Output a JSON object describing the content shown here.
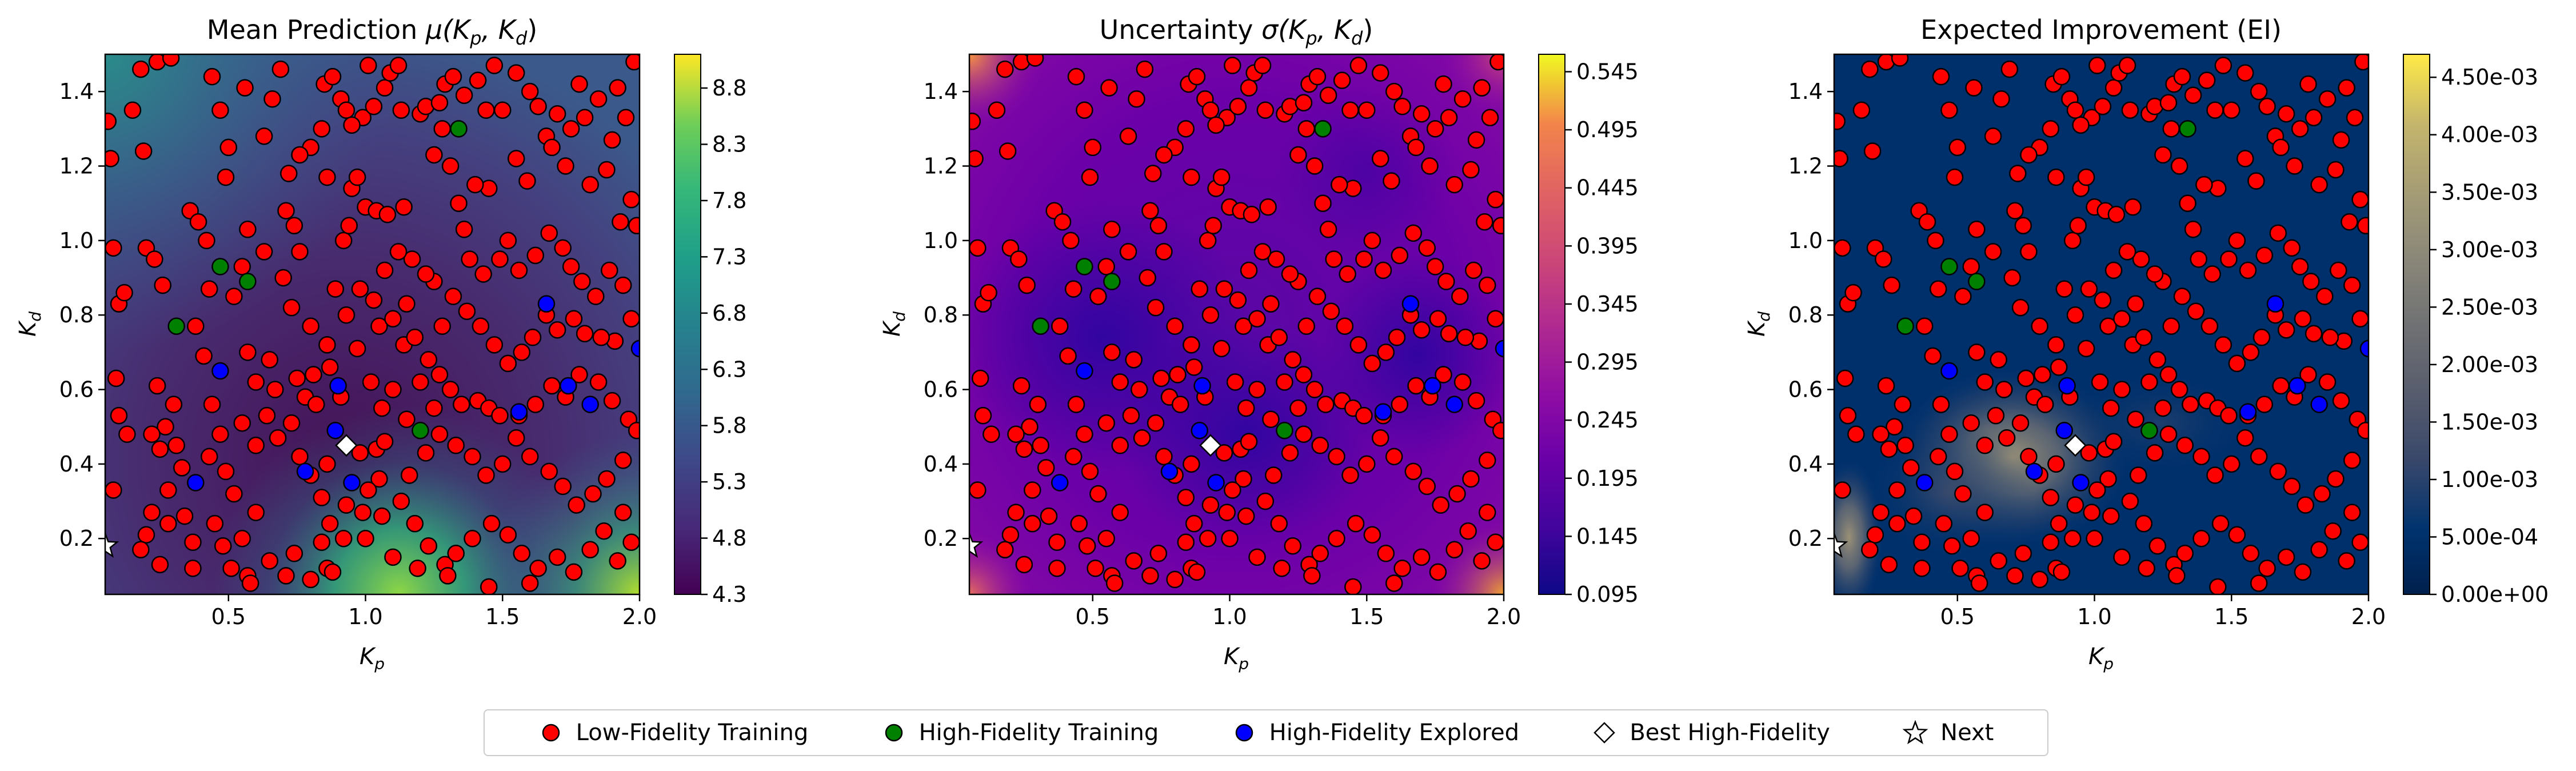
{
  "figure": {
    "legend": [
      {
        "label": "Low-Fidelity Training",
        "color": "#ff0000",
        "marker": "circle"
      },
      {
        "label": "High-Fidelity Training",
        "color": "#008000",
        "marker": "circle"
      },
      {
        "label": "High-Fidelity Explored",
        "color": "#0000ff",
        "marker": "circle"
      },
      {
        "label": "Best High-Fidelity",
        "color": "#ffffff",
        "marker": "diamond"
      },
      {
        "label": "Next",
        "color": "#ffffff",
        "marker": "star"
      }
    ]
  },
  "chart_data": [
    {
      "type": "heatmap",
      "title_main": "Mean Prediction ",
      "title_math": "μ(K",
      "title_sub1": "p",
      "title_mid": ", K",
      "title_sub2": "d",
      "title_end": ")",
      "xlabel_main": "K",
      "xlabel_sub": "p",
      "ylabel_main": "K",
      "ylabel_sub": "d",
      "xlim": [
        0.05,
        2.0
      ],
      "ylim": [
        0.05,
        1.5
      ],
      "xticks": [
        "0.5",
        "1.0",
        "1.5",
        "2.0"
      ],
      "xtick_values": [
        0.5,
        1.0,
        1.5,
        2.0
      ],
      "yticks": [
        "0.2",
        "0.4",
        "0.6",
        "0.8",
        "1.0",
        "1.2",
        "1.4"
      ],
      "ytick_values": [
        0.2,
        0.4,
        0.6,
        0.8,
        1.0,
        1.2,
        1.4
      ],
      "colormap": "viridis",
      "colorbar_range": [
        4.3,
        9.1
      ],
      "colorbar_ticks": [
        "4.3",
        "4.8",
        "5.3",
        "5.8",
        "6.3",
        "6.8",
        "7.3",
        "7.8",
        "8.3",
        "8.8"
      ],
      "colorbar_tick_values": [
        4.3,
        4.8,
        5.3,
        5.8,
        6.3,
        6.8,
        7.3,
        7.8,
        8.3,
        8.8
      ]
    },
    {
      "type": "heatmap",
      "title_main": "Uncertainty ",
      "title_math": "σ(K",
      "title_sub1": "p",
      "title_mid": ", K",
      "title_sub2": "d",
      "title_end": ")",
      "xlabel_main": "K",
      "xlabel_sub": "p",
      "ylabel_main": "K",
      "ylabel_sub": "d",
      "xlim": [
        0.05,
        2.0
      ],
      "ylim": [
        0.05,
        1.5
      ],
      "xticks": [
        "0.5",
        "1.0",
        "1.5",
        "2.0"
      ],
      "xtick_values": [
        0.5,
        1.0,
        1.5,
        2.0
      ],
      "yticks": [
        "0.2",
        "0.4",
        "0.6",
        "0.8",
        "1.0",
        "1.2",
        "1.4"
      ],
      "ytick_values": [
        0.2,
        0.4,
        0.6,
        0.8,
        1.0,
        1.2,
        1.4
      ],
      "colormap": "plasma",
      "colorbar_range": [
        0.095,
        0.56
      ],
      "colorbar_ticks": [
        "0.095",
        "0.145",
        "0.195",
        "0.245",
        "0.295",
        "0.345",
        "0.395",
        "0.445",
        "0.495",
        "0.545"
      ],
      "colorbar_tick_values": [
        0.095,
        0.145,
        0.195,
        0.245,
        0.295,
        0.345,
        0.395,
        0.445,
        0.495,
        0.545
      ]
    },
    {
      "type": "heatmap",
      "title_main": "Expected Improvement (EI)",
      "title_math": "",
      "title_sub1": "",
      "title_mid": "",
      "title_sub2": "",
      "title_end": "",
      "xlabel_main": "K",
      "xlabel_sub": "p",
      "ylabel_main": "K",
      "ylabel_sub": "d",
      "xlim": [
        0.05,
        2.0
      ],
      "ylim": [
        0.05,
        1.5
      ],
      "xticks": [
        "0.5",
        "1.0",
        "1.5",
        "2.0"
      ],
      "xtick_values": [
        0.5,
        1.0,
        1.5,
        2.0
      ],
      "yticks": [
        "0.2",
        "0.4",
        "0.6",
        "0.8",
        "1.0",
        "1.2",
        "1.4"
      ],
      "ytick_values": [
        0.2,
        0.4,
        0.6,
        0.8,
        1.0,
        1.2,
        1.4
      ],
      "colormap": "cividis",
      "colorbar_range": [
        0.0,
        0.0047
      ],
      "colorbar_ticks": [
        "0.00e+00",
        "5.00e-04",
        "1.00e-03",
        "1.50e-03",
        "2.00e-03",
        "2.50e-03",
        "3.00e-03",
        "3.50e-03",
        "4.00e-03",
        "4.50e-03"
      ],
      "colorbar_tick_values": [
        0.0,
        0.0005,
        0.001,
        0.0015,
        0.002,
        0.0025,
        0.003,
        0.0035,
        0.004,
        0.0045
      ]
    }
  ],
  "points": {
    "low_fidelity": [
      [
        0.06,
        1.32
      ],
      [
        0.07,
        1.22
      ],
      [
        0.08,
        0.98
      ],
      [
        0.1,
        0.83
      ],
      [
        0.12,
        0.86
      ],
      [
        0.09,
        0.63
      ],
      [
        0.1,
        0.53
      ],
      [
        0.13,
        0.48
      ],
      [
        0.08,
        0.33
      ],
      [
        0.18,
        1.46
      ],
      [
        0.24,
        1.48
      ],
      [
        0.29,
        1.49
      ],
      [
        0.15,
        1.35
      ],
      [
        0.19,
        1.24
      ],
      [
        0.2,
        0.98
      ],
      [
        0.23,
        0.95
      ],
      [
        0.26,
        0.88
      ],
      [
        0.24,
        0.61
      ],
      [
        0.3,
        0.56
      ],
      [
        0.27,
        0.5
      ],
      [
        0.22,
        0.48
      ],
      [
        0.25,
        0.44
      ],
      [
        0.31,
        0.45
      ],
      [
        0.33,
        0.39
      ],
      [
        0.28,
        0.33
      ],
      [
        0.22,
        0.27
      ],
      [
        0.28,
        0.24
      ],
      [
        0.37,
        0.19
      ],
      [
        0.2,
        0.21
      ],
      [
        0.18,
        0.17
      ],
      [
        0.25,
        0.13
      ],
      [
        0.37,
        0.12
      ],
      [
        0.34,
        0.26
      ],
      [
        0.36,
        1.08
      ],
      [
        0.39,
        1.05
      ],
      [
        0.42,
        1.0
      ],
      [
        0.43,
        0.87
      ],
      [
        0.38,
        0.77
      ],
      [
        0.41,
        0.69
      ],
      [
        0.44,
        0.56
      ],
      [
        0.47,
        0.48
      ],
      [
        0.49,
        0.38
      ],
      [
        0.43,
        0.42
      ],
      [
        0.45,
        0.24
      ],
      [
        0.48,
        0.18
      ],
      [
        0.55,
        0.2
      ],
      [
        0.51,
        0.12
      ],
      [
        0.57,
        0.1
      ],
      [
        0.58,
        0.08
      ],
      [
        0.52,
        0.32
      ],
      [
        0.6,
        0.27
      ],
      [
        0.65,
        0.14
      ],
      [
        0.71,
        0.1
      ],
      [
        0.74,
        0.16
      ],
      [
        0.8,
        0.09
      ],
      [
        0.86,
        0.12
      ],
      [
        0.88,
        0.11
      ],
      [
        0.6,
        0.45
      ],
      [
        0.55,
        0.51
      ],
      [
        0.64,
        0.53
      ],
      [
        0.68,
        0.47
      ],
      [
        0.67,
        0.6
      ],
      [
        0.6,
        0.62
      ],
      [
        0.65,
        0.68
      ],
      [
        0.57,
        0.7
      ],
      [
        0.75,
        0.63
      ],
      [
        0.78,
        0.58
      ],
      [
        0.82,
        0.56
      ],
      [
        0.73,
        0.51
      ],
      [
        0.76,
        0.42
      ],
      [
        0.8,
        0.37
      ],
      [
        0.86,
        0.4
      ],
      [
        0.84,
        0.31
      ],
      [
        0.93,
        0.29
      ],
      [
        0.87,
        0.24
      ],
      [
        0.92,
        0.2
      ],
      [
        0.84,
        0.19
      ],
      [
        0.81,
        0.64
      ],
      [
        0.87,
        0.66
      ],
      [
        0.91,
        0.58
      ],
      [
        0.98,
        0.43
      ],
      [
        1.04,
        0.44
      ],
      [
        1.05,
        0.36
      ],
      [
        1.01,
        0.33
      ],
      [
        1.06,
        0.26
      ],
      [
        0.52,
        0.85
      ],
      [
        0.55,
        0.93
      ],
      [
        0.63,
        0.97
      ],
      [
        0.57,
        1.03
      ],
      [
        0.49,
        1.17
      ],
      [
        0.47,
        1.35
      ],
      [
        0.44,
        1.44
      ],
      [
        0.5,
        1.25
      ],
      [
        0.56,
        1.41
      ],
      [
        0.63,
        1.28
      ],
      [
        0.66,
        1.38
      ],
      [
        0.69,
        1.46
      ],
      [
        0.72,
        1.18
      ],
      [
        0.71,
        1.08
      ],
      [
        0.74,
        1.04
      ],
      [
        0.76,
        0.97
      ],
      [
        0.7,
        0.9
      ],
      [
        0.73,
        0.82
      ],
      [
        0.8,
        0.77
      ],
      [
        0.86,
        0.72
      ],
      [
        0.89,
        0.87
      ],
      [
        0.92,
        1.0
      ],
      [
        0.94,
        1.04
      ],
      [
        0.95,
        1.14
      ],
      [
        0.97,
        1.17
      ],
      [
        0.99,
        1.33
      ],
      [
        1.01,
        1.47
      ],
      [
        0.85,
        1.42
      ],
      [
        0.88,
        1.44
      ],
      [
        0.91,
        1.38
      ],
      [
        0.93,
        1.35
      ],
      [
        0.95,
        1.31
      ],
      [
        1.03,
        1.36
      ],
      [
        1.07,
        1.41
      ],
      [
        1.09,
        1.45
      ],
      [
        1.12,
        1.47
      ],
      [
        0.8,
        1.25
      ],
      [
        0.76,
        1.23
      ],
      [
        0.84,
        1.3
      ],
      [
        0.86,
        1.17
      ],
      [
        1.0,
        1.09
      ],
      [
        1.04,
        1.08
      ],
      [
        1.08,
        1.07
      ],
      [
        1.14,
        1.09
      ],
      [
        1.13,
        1.35
      ],
      [
        1.2,
        1.34
      ],
      [
        1.22,
        1.36
      ],
      [
        1.25,
        1.23
      ],
      [
        1.28,
        1.3
      ],
      [
        1.27,
        1.37
      ],
      [
        1.29,
        1.42
      ],
      [
        1.32,
        1.44
      ],
      [
        1.36,
        1.39
      ],
      [
        1.41,
        1.43
      ],
      [
        1.44,
        1.35
      ],
      [
        1.47,
        1.47
      ],
      [
        1.5,
        1.35
      ],
      [
        1.55,
        1.45
      ],
      [
        1.6,
        1.4
      ],
      [
        1.63,
        1.36
      ],
      [
        1.66,
        1.28
      ],
      [
        1.7,
        1.34
      ],
      [
        1.75,
        1.3
      ],
      [
        1.78,
        1.42
      ],
      [
        1.8,
        1.33
      ],
      [
        1.85,
        1.38
      ],
      [
        1.9,
        1.27
      ],
      [
        1.95,
        1.33
      ],
      [
        1.98,
        1.48
      ],
      [
        1.92,
        1.41
      ],
      [
        1.68,
        1.25
      ],
      [
        1.73,
        1.2
      ],
      [
        1.82,
        1.15
      ],
      [
        1.88,
        1.19
      ],
      [
        1.93,
        1.05
      ],
      [
        1.97,
        1.11
      ],
      [
        1.59,
        1.16
      ],
      [
        1.55,
        1.22
      ],
      [
        1.45,
        1.14
      ],
      [
        1.4,
        1.15
      ],
      [
        1.34,
        1.1
      ],
      [
        1.31,
        1.2
      ],
      [
        1.36,
        1.03
      ],
      [
        1.38,
        0.95
      ],
      [
        1.43,
        0.91
      ],
      [
        1.49,
        0.95
      ],
      [
        1.52,
        1.0
      ],
      [
        1.56,
        0.92
      ],
      [
        1.62,
        0.96
      ],
      [
        1.67,
        1.02
      ],
      [
        1.72,
        0.98
      ],
      [
        1.75,
        0.93
      ],
      [
        1.79,
        0.89
      ],
      [
        1.84,
        0.85
      ],
      [
        1.89,
        0.92
      ],
      [
        1.94,
        0.88
      ],
      [
        1.99,
        1.04
      ],
      [
        1.97,
        0.79
      ],
      [
        1.91,
        0.73
      ],
      [
        1.86,
        0.74
      ],
      [
        1.8,
        0.75
      ],
      [
        1.76,
        0.79
      ],
      [
        1.7,
        0.76
      ],
      [
        1.66,
        0.8
      ],
      [
        1.61,
        0.74
      ],
      [
        1.57,
        0.7
      ],
      [
        1.52,
        0.67
      ],
      [
        1.47,
        0.72
      ],
      [
        1.42,
        0.77
      ],
      [
        1.37,
        0.81
      ],
      [
        1.32,
        0.85
      ],
      [
        1.28,
        0.77
      ],
      [
        1.25,
        0.89
      ],
      [
        1.22,
        0.91
      ],
      [
        1.17,
        0.95
      ],
      [
        1.12,
        0.97
      ],
      [
        1.07,
        0.92
      ],
      [
        1.03,
        0.84
      ],
      [
        1.05,
        0.77
      ],
      [
        1.1,
        0.79
      ],
      [
        1.14,
        0.72
      ],
      [
        1.18,
        0.74
      ],
      [
        1.23,
        0.68
      ],
      [
        1.27,
        0.64
      ],
      [
        1.31,
        0.6
      ],
      [
        1.35,
        0.56
      ],
      [
        1.41,
        0.57
      ],
      [
        1.45,
        0.55
      ],
      [
        1.49,
        0.53
      ],
      [
        1.56,
        0.53
      ],
      [
        1.62,
        0.56
      ],
      [
        1.68,
        0.61
      ],
      [
        1.73,
        0.58
      ],
      [
        1.78,
        0.64
      ],
      [
        1.85,
        0.62
      ],
      [
        1.9,
        0.57
      ],
      [
        1.96,
        0.52
      ],
      [
        1.99,
        0.49
      ],
      [
        1.94,
        0.41
      ],
      [
        1.88,
        0.36
      ],
      [
        1.83,
        0.32
      ],
      [
        1.77,
        0.29
      ],
      [
        1.72,
        0.34
      ],
      [
        1.67,
        0.38
      ],
      [
        1.6,
        0.42
      ],
      [
        1.55,
        0.47
      ],
      [
        1.5,
        0.4
      ],
      [
        1.44,
        0.37
      ],
      [
        1.39,
        0.42
      ],
      [
        1.33,
        0.45
      ],
      [
        1.27,
        0.48
      ],
      [
        1.22,
        0.43
      ],
      [
        1.16,
        0.37
      ],
      [
        1.13,
        0.3
      ],
      [
        1.18,
        0.24
      ],
      [
        1.23,
        0.18
      ],
      [
        1.29,
        0.13
      ],
      [
        1.33,
        0.16
      ],
      [
        1.39,
        0.2
      ],
      [
        1.46,
        0.24
      ],
      [
        1.52,
        0.21
      ],
      [
        1.57,
        0.16
      ],
      [
        1.63,
        0.12
      ],
      [
        1.7,
        0.15
      ],
      [
        1.76,
        0.11
      ],
      [
        1.82,
        0.17
      ],
      [
        1.87,
        0.22
      ],
      [
        1.92,
        0.14
      ],
      [
        1.97,
        0.19
      ],
      [
        1.94,
        0.27
      ],
      [
        1.6,
        0.08
      ],
      [
        1.45,
        0.07
      ],
      [
        1.3,
        0.1
      ],
      [
        1.19,
        0.12
      ],
      [
        1.1,
        0.15
      ],
      [
        1.0,
        0.2
      ],
      [
        0.99,
        0.27
      ],
      [
        1.06,
        0.55
      ],
      [
        1.1,
        0.6
      ],
      [
        1.15,
        0.52
      ],
      [
        1.07,
        0.46
      ],
      [
        1.02,
        0.62
      ],
      [
        0.97,
        0.71
      ],
      [
        0.93,
        0.8
      ],
      [
        0.98,
        0.87
      ],
      [
        1.15,
        0.83
      ],
      [
        1.2,
        0.62
      ],
      [
        1.25,
        0.55
      ]
    ],
    "high_fidelity_training": [
      [
        0.47,
        0.93
      ],
      [
        0.31,
        0.77
      ],
      [
        0.57,
        0.89
      ],
      [
        1.2,
        0.49
      ],
      [
        1.34,
        1.3
      ]
    ],
    "high_fidelity_explored": [
      [
        0.47,
        0.65
      ],
      [
        0.38,
        0.35
      ],
      [
        0.9,
        0.61
      ],
      [
        0.89,
        0.49
      ],
      [
        0.95,
        0.35
      ],
      [
        0.78,
        0.38
      ],
      [
        1.66,
        0.83
      ],
      [
        1.56,
        0.54
      ],
      [
        1.74,
        0.61
      ],
      [
        1.82,
        0.56
      ],
      [
        2.0,
        0.71
      ]
    ],
    "best_high_fidelity": [
      [
        0.93,
        0.45
      ]
    ],
    "next": [
      [
        0.05,
        0.18
      ]
    ]
  }
}
